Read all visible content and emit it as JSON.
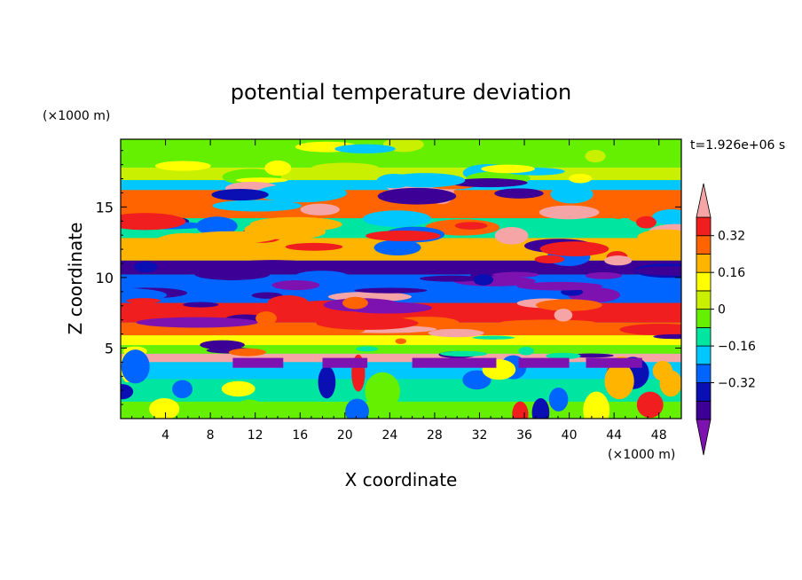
{
  "chart_data": {
    "type": "heatmap",
    "title": "potential temperature deviation",
    "time_label": "t=1.926e+06 s",
    "xlabel": "X coordinate",
    "ylabel": "Z coordinate",
    "x_unit": "(×1000 m)",
    "y_unit": "(×1000 m)",
    "xlim": [
      0,
      50
    ],
    "ylim": [
      0,
      19.8
    ],
    "x_ticks": [
      4,
      8,
      12,
      16,
      20,
      24,
      28,
      32,
      36,
      40,
      44,
      48
    ],
    "y_ticks": [
      5,
      10,
      15
    ],
    "colorbar": {
      "levels": [
        -0.48,
        -0.4,
        -0.32,
        -0.24,
        -0.16,
        -0.08,
        0,
        0.08,
        0.16,
        0.24,
        0.32,
        0.4
      ],
      "labels": [
        "0.32",
        "0.16",
        "0",
        "−0.16",
        "−0.32"
      ],
      "label_values": [
        0.32,
        0.16,
        0,
        -0.16,
        -0.32
      ],
      "colors": [
        "#7e12b0",
        "#3c0096",
        "#0a0fb4",
        "#0064ff",
        "#00c8ff",
        "#00e6a0",
        "#64f000",
        "#c8f000",
        "#ffff00",
        "#ffb400",
        "#ff6400",
        "#f01e1e",
        "#f5a5a5"
      ]
    }
  }
}
